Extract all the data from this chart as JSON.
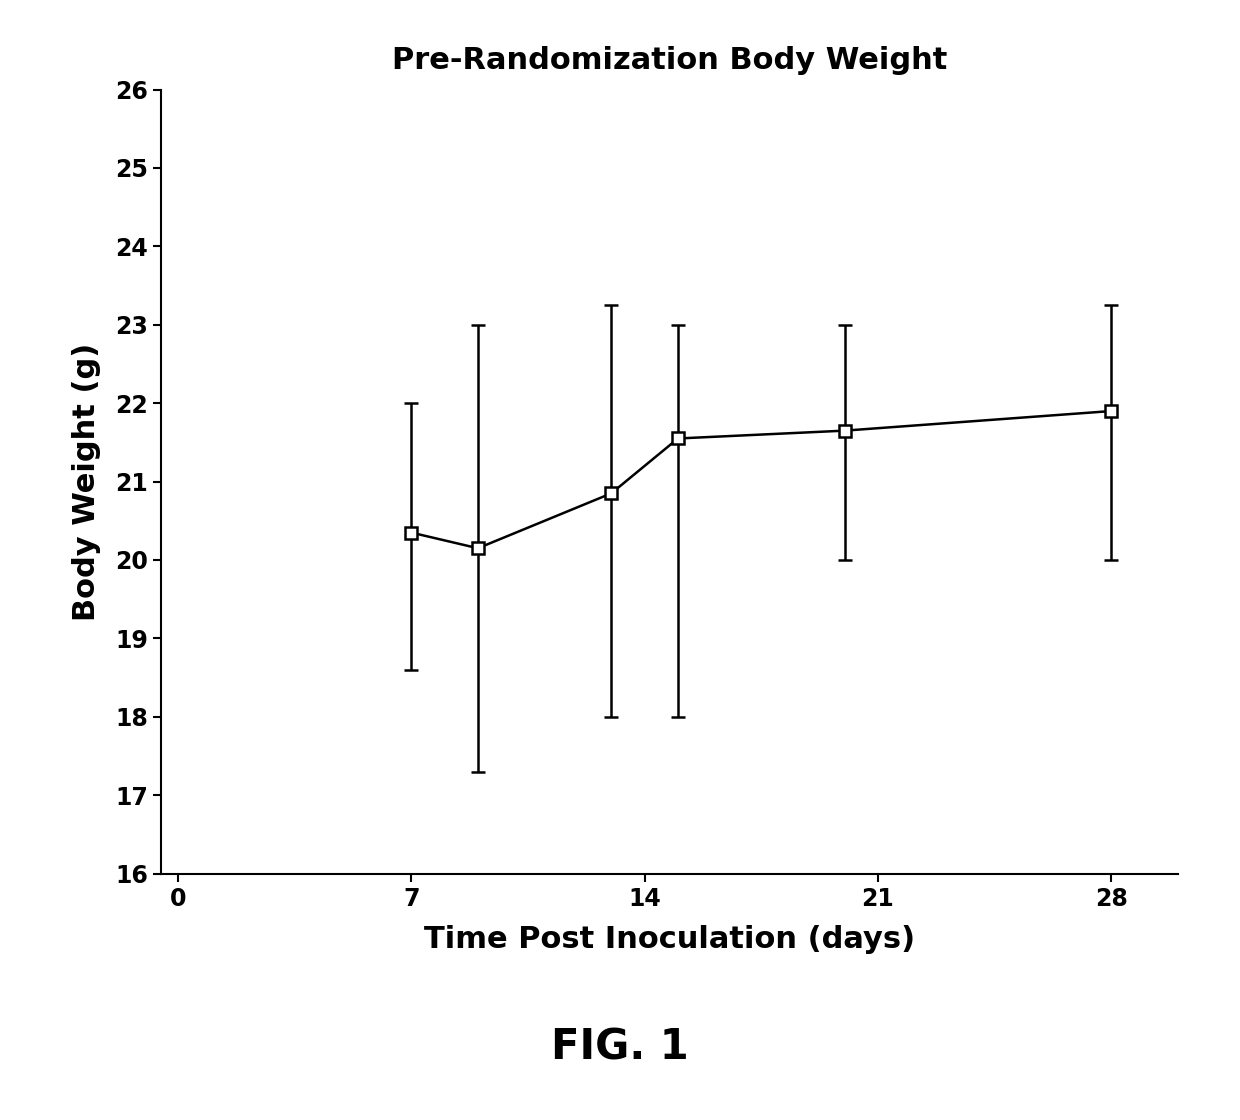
{
  "title": "Pre-Randomization Body Weight",
  "xlabel": "Time Post Inoculation (days)",
  "ylabel": "Body Weight (g)",
  "fig_label": "FIG. 1",
  "x": [
    7,
    9,
    13,
    15,
    20,
    28
  ],
  "y": [
    20.35,
    20.15,
    20.85,
    21.55,
    21.65,
    21.9
  ],
  "yerr_low": [
    1.75,
    2.85,
    2.85,
    3.55,
    1.65,
    1.9
  ],
  "yerr_high": [
    1.65,
    2.85,
    2.4,
    1.45,
    1.35,
    1.35
  ],
  "xlim": [
    -0.5,
    30
  ],
  "ylim": [
    16,
    26
  ],
  "xticks": [
    0,
    7,
    14,
    21,
    28
  ],
  "yticks": [
    16,
    17,
    18,
    19,
    20,
    21,
    22,
    23,
    24,
    25,
    26
  ],
  "background_color": "#ffffff",
  "line_color": "#000000",
  "marker_color": "#ffffff",
  "marker_edge_color": "#000000",
  "marker_size": 9,
  "marker_style": "s",
  "line_width": 1.8,
  "cap_size": 5,
  "title_fontsize": 22,
  "label_fontsize": 22,
  "tick_fontsize": 17,
  "fig_label_fontsize": 30
}
